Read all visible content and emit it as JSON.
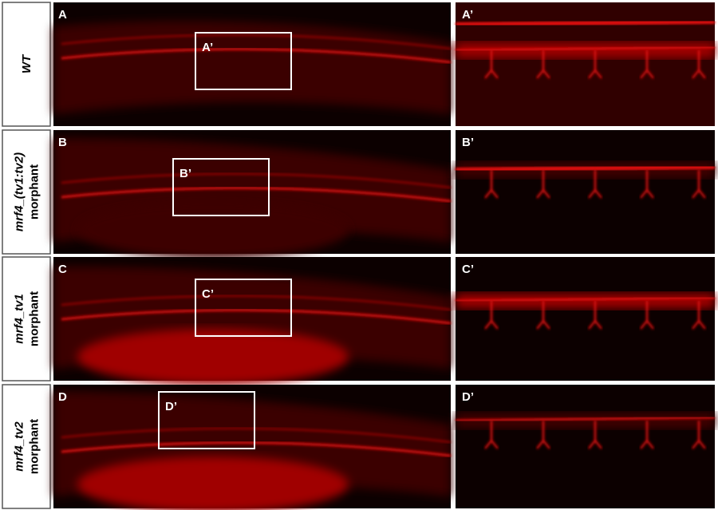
{
  "rows": [
    {
      "label_lines": [
        "WT"
      ],
      "panel": "A",
      "inset_label": "A’",
      "zoom_label": "A’"
    },
    {
      "label_lines": [
        "mrf4_(tv1:tv2)",
        "morphant"
      ],
      "panel": "B",
      "inset_label": "B’",
      "zoom_label": "B’"
    },
    {
      "label_lines": [
        "mrf4_tv1",
        "morphant"
      ],
      "panel": "C",
      "inset_label": "C’",
      "zoom_label": "C’"
    },
    {
      "label_lines": [
        "mrf4_tv2",
        "morphant"
      ],
      "panel": "D",
      "inset_label": "D’",
      "zoom_label": "D’"
    }
  ]
}
